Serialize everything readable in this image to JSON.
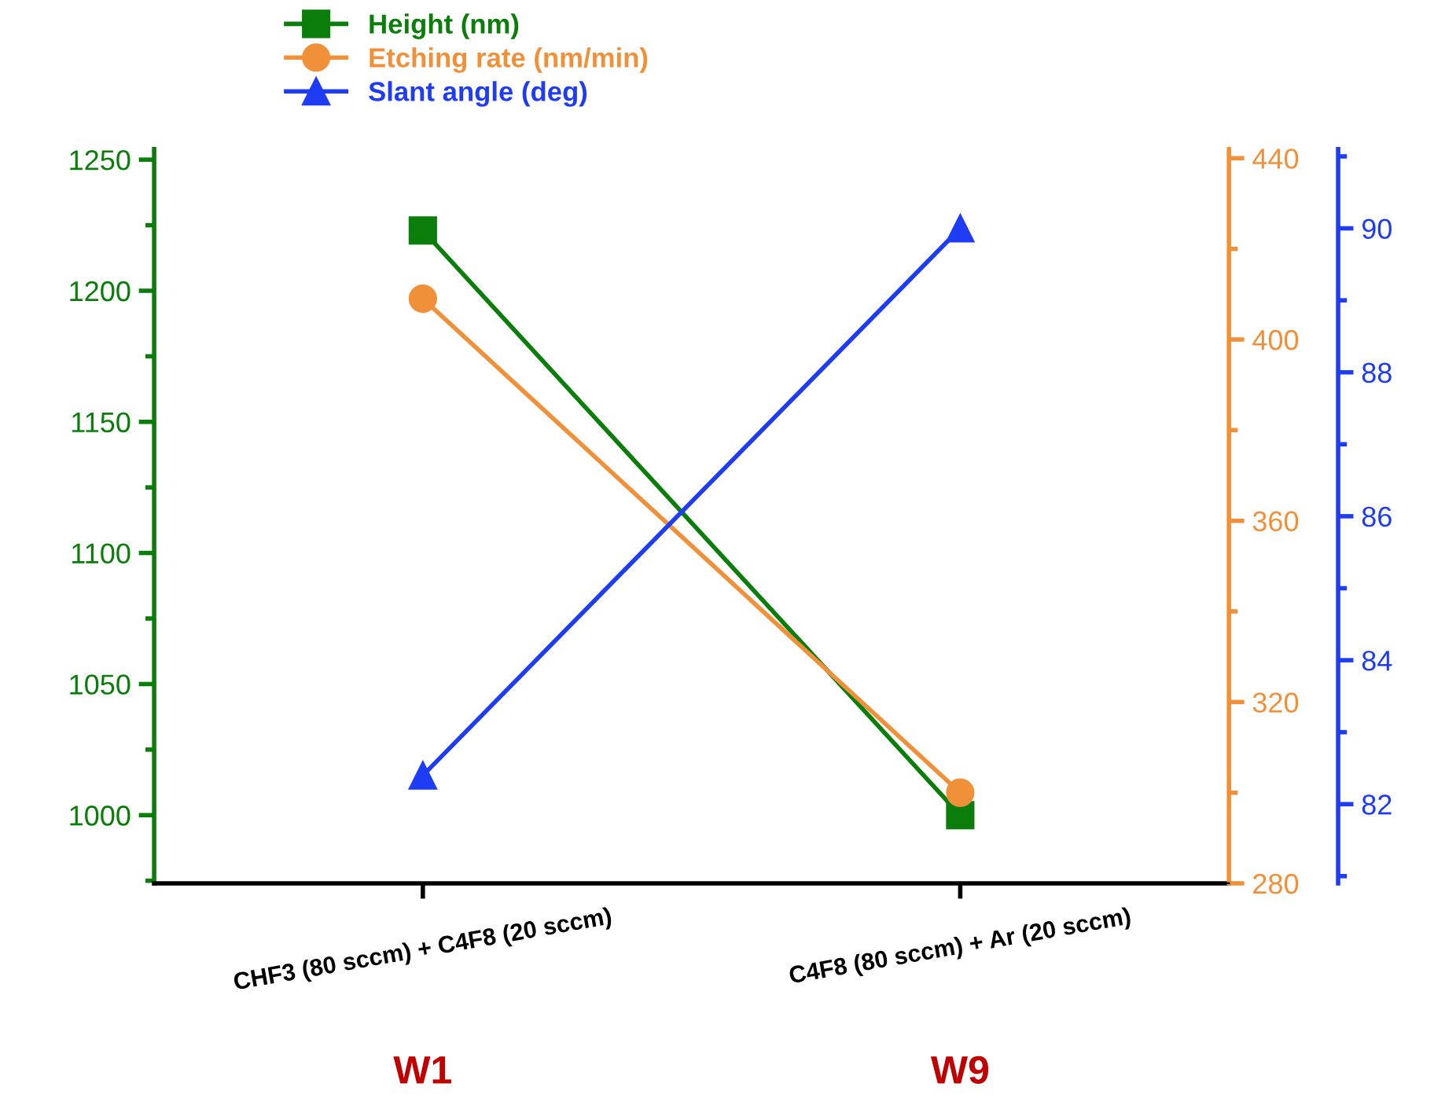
{
  "chart_data": {
    "type": "line",
    "categories": [
      "CHF3 (80 sccm) + C4F8 (20 sccm)",
      "C4F8 (80 sccm) + Ar (20 sccm)"
    ],
    "series": [
      {
        "name": "Height (nm)",
        "color": "#0a7d0a",
        "marker": "square",
        "values": [
          1223,
          1000
        ]
      },
      {
        "name": "Etching rate (nm/min)",
        "color": "#f0913a",
        "marker": "circle",
        "axis": "y2",
        "values": [
          409,
          300
        ]
      },
      {
        "name": "Slant angle (deg)",
        "color": "#1f3cf5",
        "marker": "triangle",
        "axis": "y3",
        "values": [
          82.4,
          90
        ]
      }
    ],
    "ylim": [
      974,
      1254
    ],
    "yticks": [
      1000,
      1050,
      1100,
      1150,
      1200,
      1250
    ],
    "y2lim": [
      280,
      442
    ],
    "y2ticks": [
      280,
      320,
      360,
      400,
      440
    ],
    "y3lim": [
      80.9,
      91.1
    ],
    "y3ticks": [
      82,
      84,
      86,
      88,
      90
    ],
    "annotations": [
      "W1",
      "W9"
    ],
    "legend": "top left",
    "line_style": "solid",
    "grid": false
  }
}
